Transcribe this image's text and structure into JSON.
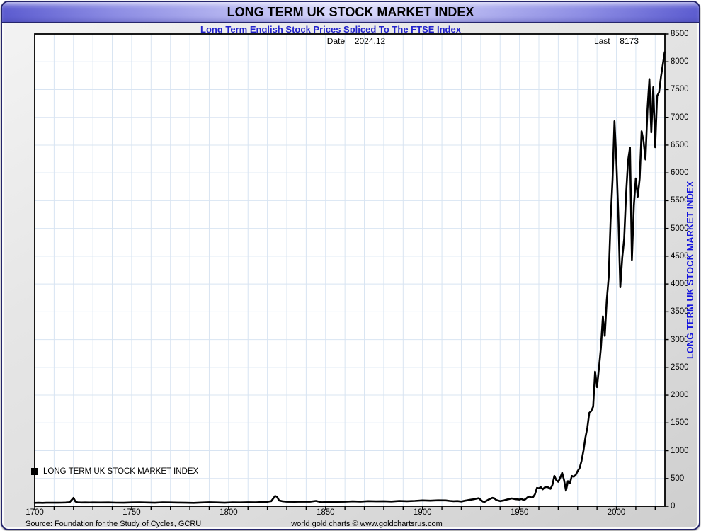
{
  "header": {
    "title": "LONG TERM UK STOCK MARKET INDEX",
    "subtitle": "Long Term English Stock Prices Spliced To The FTSE Index"
  },
  "annotations": {
    "date": "Date = 2024.12",
    "last": "Last = 8173"
  },
  "legend": {
    "marker": "black-square",
    "label": "LONG TERM UK STOCK MARKET INDEX"
  },
  "y_axis": {
    "title": "LONG TERM UK STOCK MARKET INDEX",
    "min": 0,
    "max": 8500,
    "tick_step": 500
  },
  "x_axis": {
    "min": 1700,
    "max": 2025,
    "label_years": [
      1700,
      1750,
      1800,
      1850,
      1900,
      1950,
      2000
    ],
    "minor_tick_step": 10
  },
  "footer": {
    "source": "Source: Foundation for the Study of Cycles, GCRU",
    "credit": "world gold charts © www.goldchartsrus.com"
  },
  "colors": {
    "titlebar_edge": "#5c5cd0",
    "titlebar_center": "#d7d7fa",
    "window_border": "#25256b",
    "subtitle_text": "#2222cc",
    "y_axis_title_text": "#1414dd",
    "grid": "#d8e4f2",
    "line": "#000000",
    "plot_background": "#ffffff",
    "frame_background": "#e2e2e2"
  },
  "chart_data": {
    "type": "line",
    "title": "LONG TERM UK STOCK MARKET INDEX",
    "subtitle": "Long Term English Stock Prices Spliced To The FTSE Index",
    "xlim": [
      1700,
      2025
    ],
    "ylim": [
      0,
      8500
    ],
    "y_tick_step": 500,
    "x_major_tick_step": 50,
    "x_minor_tick_step": 10,
    "grid": true,
    "legend_position": "bottom-left-inside",
    "last_date": "2024.12",
    "last_value": 8173,
    "series": [
      {
        "name": "LONG TERM UK STOCK MARKET INDEX",
        "color": "#000000",
        "points": [
          [
            1700,
            60
          ],
          [
            1702,
            62
          ],
          [
            1704,
            60
          ],
          [
            1706,
            63
          ],
          [
            1708,
            62
          ],
          [
            1710,
            64
          ],
          [
            1712,
            62
          ],
          [
            1714,
            64
          ],
          [
            1716,
            66
          ],
          [
            1718,
            72
          ],
          [
            1720,
            150
          ],
          [
            1721,
            85
          ],
          [
            1722,
            70
          ],
          [
            1724,
            66
          ],
          [
            1726,
            68
          ],
          [
            1728,
            66
          ],
          [
            1730,
            68
          ],
          [
            1734,
            66
          ],
          [
            1738,
            68
          ],
          [
            1742,
            64
          ],
          [
            1746,
            62
          ],
          [
            1750,
            68
          ],
          [
            1754,
            70
          ],
          [
            1758,
            66
          ],
          [
            1762,
            63
          ],
          [
            1766,
            70
          ],
          [
            1770,
            68
          ],
          [
            1774,
            65
          ],
          [
            1778,
            62
          ],
          [
            1782,
            60
          ],
          [
            1786,
            66
          ],
          [
            1790,
            72
          ],
          [
            1794,
            68
          ],
          [
            1798,
            63
          ],
          [
            1802,
            70
          ],
          [
            1806,
            68
          ],
          [
            1810,
            72
          ],
          [
            1814,
            70
          ],
          [
            1818,
            76
          ],
          [
            1820,
            80
          ],
          [
            1822,
            92
          ],
          [
            1824,
            185
          ],
          [
            1825,
            168
          ],
          [
            1826,
            105
          ],
          [
            1828,
            88
          ],
          [
            1830,
            82
          ],
          [
            1834,
            80
          ],
          [
            1838,
            84
          ],
          [
            1842,
            82
          ],
          [
            1845,
            95
          ],
          [
            1848,
            72
          ],
          [
            1852,
            76
          ],
          [
            1856,
            80
          ],
          [
            1860,
            82
          ],
          [
            1864,
            88
          ],
          [
            1868,
            84
          ],
          [
            1872,
            92
          ],
          [
            1876,
            88
          ],
          [
            1880,
            90
          ],
          [
            1884,
            86
          ],
          [
            1888,
            94
          ],
          [
            1892,
            90
          ],
          [
            1896,
            95
          ],
          [
            1900,
            105
          ],
          [
            1904,
            100
          ],
          [
            1908,
            106
          ],
          [
            1912,
            105
          ],
          [
            1914,
            95
          ],
          [
            1916,
            90
          ],
          [
            1918,
            93
          ],
          [
            1920,
            85
          ],
          [
            1922,
            100
          ],
          [
            1924,
            112
          ],
          [
            1926,
            124
          ],
          [
            1928,
            138
          ],
          [
            1929,
            145
          ],
          [
            1930,
            115
          ],
          [
            1931,
            85
          ],
          [
            1932,
            78
          ],
          [
            1934,
            118
          ],
          [
            1936,
            150
          ],
          [
            1937,
            143
          ],
          [
            1938,
            112
          ],
          [
            1940,
            92
          ],
          [
            1942,
            104
          ],
          [
            1944,
            124
          ],
          [
            1946,
            140
          ],
          [
            1948,
            126
          ],
          [
            1950,
            120
          ],
          [
            1951,
            132
          ],
          [
            1952,
            114
          ],
          [
            1953,
            124
          ],
          [
            1954,
            155
          ],
          [
            1955,
            176
          ],
          [
            1956,
            158
          ],
          [
            1957,
            164
          ],
          [
            1958,
            216
          ],
          [
            1959,
            330
          ],
          [
            1960,
            323
          ],
          [
            1961,
            344
          ],
          [
            1962,
            304
          ],
          [
            1963,
            338
          ],
          [
            1964,
            346
          ],
          [
            1965,
            338
          ],
          [
            1966,
            314
          ],
          [
            1967,
            386
          ],
          [
            1968,
            545
          ],
          [
            1969,
            470
          ],
          [
            1970,
            440
          ],
          [
            1971,
            510
          ],
          [
            1972,
            600
          ],
          [
            1973,
            470
          ],
          [
            1974,
            280
          ],
          [
            1975,
            451
          ],
          [
            1976,
            412
          ],
          [
            1977,
            545
          ],
          [
            1978,
            532
          ],
          [
            1979,
            562
          ],
          [
            1980,
            632
          ],
          [
            1981,
            684
          ],
          [
            1982,
            812
          ],
          [
            1983,
            1000
          ],
          [
            1984,
            1232
          ],
          [
            1985,
            1413
          ],
          [
            1986,
            1679
          ],
          [
            1987,
            1713
          ],
          [
            1988,
            1793
          ],
          [
            1989,
            2423
          ],
          [
            1990,
            2143
          ],
          [
            1991,
            2493
          ],
          [
            1992,
            2847
          ],
          [
            1993,
            3418
          ],
          [
            1994,
            3066
          ],
          [
            1995,
            3689
          ],
          [
            1996,
            4119
          ],
          [
            1997,
            5136
          ],
          [
            1998,
            5883
          ],
          [
            1999,
            6930
          ],
          [
            2000,
            6223
          ],
          [
            2001,
            5217
          ],
          [
            2002,
            3940
          ],
          [
            2003,
            4477
          ],
          [
            2004,
            4814
          ],
          [
            2005,
            5619
          ],
          [
            2006,
            6221
          ],
          [
            2007,
            6457
          ],
          [
            2008,
            4434
          ],
          [
            2009,
            5413
          ],
          [
            2010,
            5900
          ],
          [
            2011,
            5572
          ],
          [
            2012,
            5898
          ],
          [
            2013,
            6749
          ],
          [
            2014,
            6566
          ],
          [
            2015,
            6242
          ],
          [
            2016,
            7143
          ],
          [
            2017,
            7688
          ],
          [
            2018,
            6728
          ],
          [
            2019,
            7542
          ],
          [
            2020,
            6461
          ],
          [
            2021,
            7385
          ],
          [
            2022,
            7452
          ],
          [
            2023,
            7733
          ],
          [
            2024.9,
            8173
          ]
        ]
      }
    ]
  }
}
